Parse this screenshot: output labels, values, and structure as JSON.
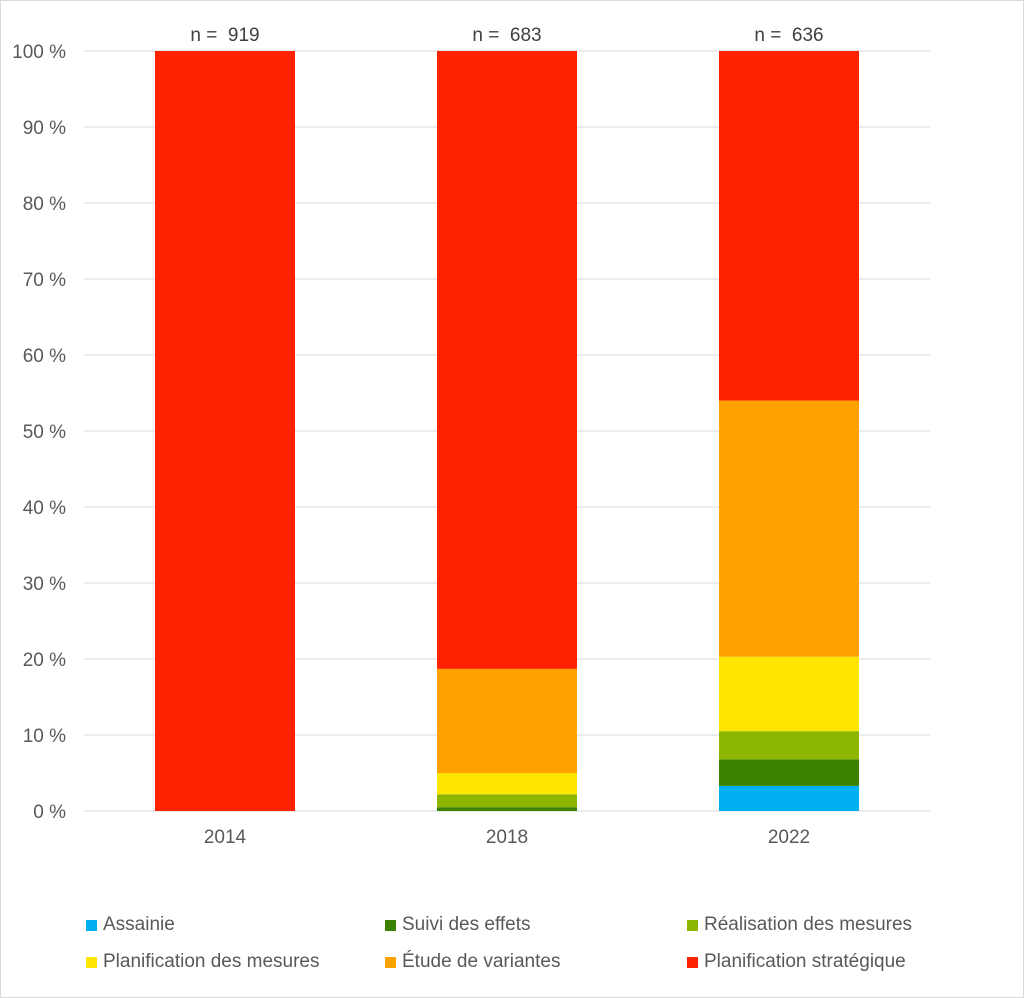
{
  "chart_data": {
    "type": "bar",
    "stacked": true,
    "categories": [
      "2014",
      "2018",
      "2022"
    ],
    "annotations": [
      "n =  919",
      "n =  683",
      "n =  636"
    ],
    "ylim": [
      0,
      100
    ],
    "yticks": [
      "0 %",
      "10 %",
      "20 %",
      "30 %",
      "40 %",
      "50 %",
      "60 %",
      "70 %",
      "80 %",
      "90 %",
      "100 %"
    ],
    "grid": true,
    "legend_position": "bottom",
    "series": [
      {
        "name": "Assainie",
        "color": "#00b0f0",
        "values": [
          0,
          0,
          3.3
        ]
      },
      {
        "name": "Suivi des effets",
        "color": "#3c8200",
        "values": [
          0,
          0.5,
          3.5
        ]
      },
      {
        "name": "Réalisation des mesures",
        "color": "#8db600",
        "values": [
          0,
          1.7,
          3.7
        ]
      },
      {
        "name": "Planification des mesures",
        "color": "#ffe600",
        "values": [
          0,
          2.8,
          9.8
        ]
      },
      {
        "name": "Étude de variantes",
        "color": "#ffa200",
        "values": [
          0,
          13.7,
          33.7
        ]
      },
      {
        "name": "Planification stratégique",
        "color": "#ff2200",
        "values": [
          100,
          81.3,
          46.0
        ]
      }
    ]
  },
  "colors": {
    "grid": "#d9d9d9",
    "axis_text": "#595959"
  }
}
